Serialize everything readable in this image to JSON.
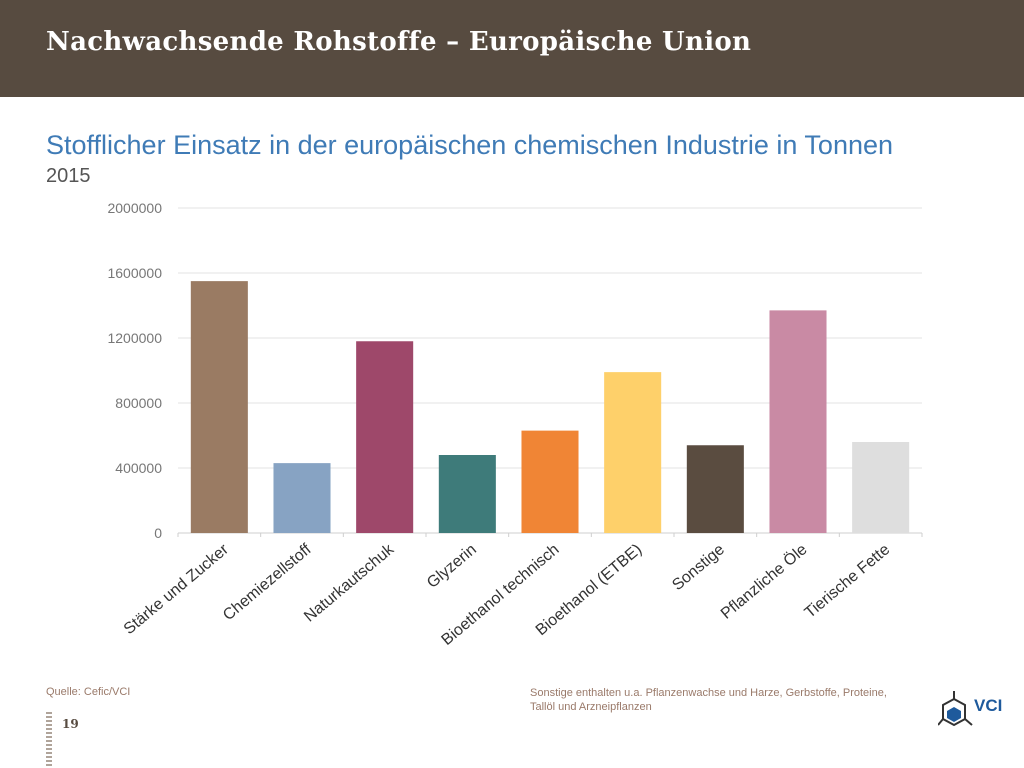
{
  "header": {
    "title": "Nachwachsende Rohstoffe – Europäische Union"
  },
  "chart_data": {
    "type": "bar",
    "title": "Stofflicher Einsatz in der europäischen chemischen Industrie in Tonnen",
    "subtitle": "2015",
    "categories": [
      "Stärke und Zucker",
      "Chemiezellstoff",
      "Naturkautschuk",
      "Glyzerin",
      "Bioethanol technisch",
      "Bioethanol (ETBE)",
      "Sonstige",
      "Pflanzliche Öle",
      "Tierische Fette"
    ],
    "values": [
      1550000,
      430000,
      1180000,
      480000,
      630000,
      990000,
      540000,
      1370000,
      560000
    ],
    "colors": [
      "#9a7b63",
      "#87a3c3",
      "#9e486a",
      "#3e7b7a",
      "#f08535",
      "#fed06a",
      "#5a4c40",
      "#c98aa4",
      "#dedede"
    ],
    "ylim": [
      0,
      2000000
    ],
    "yticks": [
      0,
      400000,
      800000,
      1200000,
      1600000,
      2000000
    ],
    "grid": true
  },
  "footer": {
    "source": "Quelle: Cefic/VCI",
    "note": "Sonstige enthalten u.a. Pflanzenwachse und Harze, Gerbstoffe, Proteine, Tallöl und Arzneipflanzen",
    "page_number": "19",
    "logo_text": "VCI"
  }
}
